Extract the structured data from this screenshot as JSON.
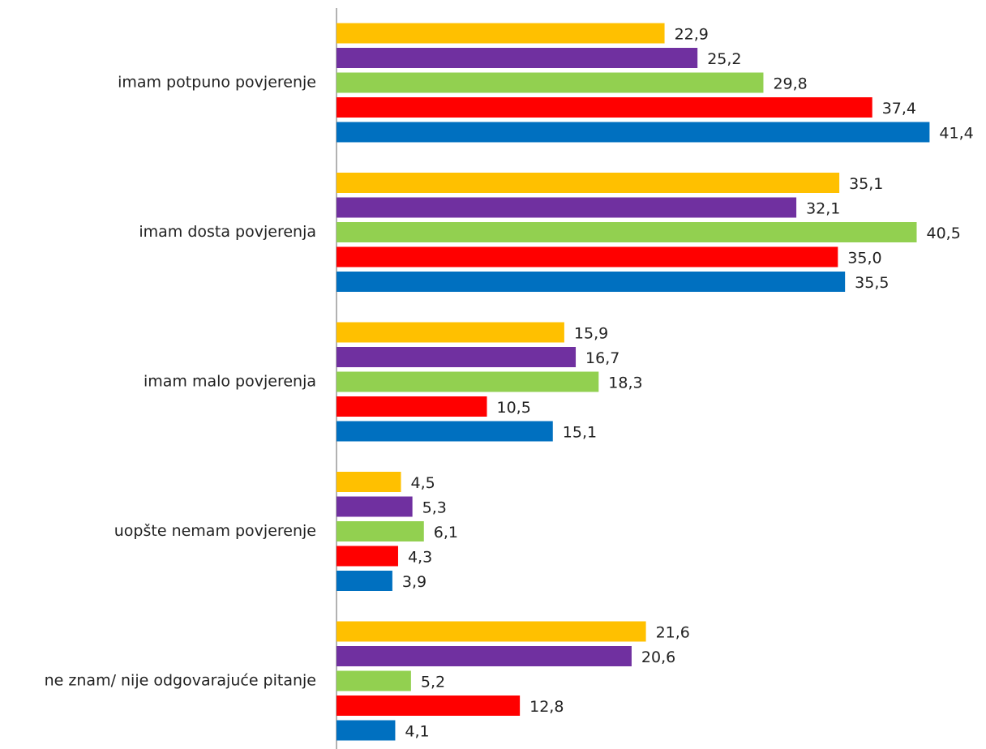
{
  "chart_data": {
    "type": "bar",
    "orientation": "horizontal",
    "categories": [
      "imam potpuno povjerenje",
      "imam dosta povjerenja",
      "imam malo povjerenja",
      "uopšte nemam povjerenje",
      "ne znam/ nije odgovarajuće pitanje"
    ],
    "series": [
      {
        "color": "#FFC000",
        "values": [
          22.9,
          35.1,
          15.9,
          4.5,
          21.6
        ],
        "value_labels": [
          "22,9",
          "35,1",
          "15,9",
          "4,5",
          "21,6"
        ]
      },
      {
        "color": "#7030A0",
        "values": [
          25.2,
          32.1,
          16.7,
          5.3,
          20.6
        ],
        "value_labels": [
          "25,2",
          "32,1",
          "16,7",
          "5,3",
          "20,6"
        ]
      },
      {
        "color": "#92D050",
        "values": [
          29.8,
          40.5,
          18.3,
          6.1,
          5.2
        ],
        "value_labels": [
          "29,8",
          "40,5",
          "18,3",
          "6,1",
          "5,2"
        ]
      },
      {
        "color": "#FF0000",
        "values": [
          37.4,
          35.0,
          10.5,
          4.3,
          12.8
        ],
        "value_labels": [
          "37,4",
          "35,0",
          "10,5",
          "4,3",
          "12,8"
        ]
      },
      {
        "color": "#0070C0",
        "values": [
          41.4,
          35.5,
          15.1,
          3.9,
          4.1
        ],
        "value_labels": [
          "41,4",
          "35,5",
          "15,1",
          "3,9",
          "4,1"
        ]
      }
    ],
    "xlim": [
      0,
      45
    ]
  }
}
